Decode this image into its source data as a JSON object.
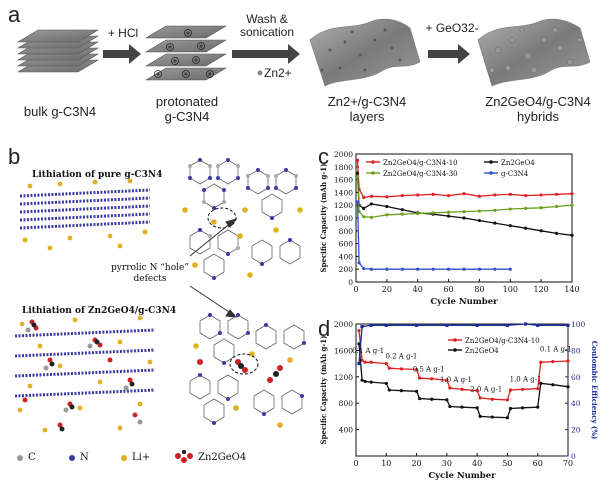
{
  "panel_a": {
    "letter": "a",
    "steps": [
      {
        "label_line1": "bulk g-C3N4",
        "label_line2": ""
      },
      {
        "label_line1": "protonated",
        "label_line2": "g-C3N4"
      },
      {
        "label_line1": "Zn2+/g-C3N4",
        "label_line2": "layers"
      },
      {
        "label_line1": "Zn2GeO4/g-C3N4",
        "label_line2": "hybrids"
      }
    ],
    "arrows": [
      {
        "line1": "+ HCl",
        "line2": ""
      },
      {
        "line1": "Wash &",
        "line2": "sonication"
      },
      {
        "line1": "+ GeO32-",
        "line2": ""
      }
    ],
    "zn_note": "Zn2+"
  },
  "panel_b": {
    "letter": "b",
    "title_top": "Lithiation of pure g-C3N4",
    "title_bottom": "Lithiation of Zn2GeO4/g-C3N4",
    "defect_note_line1": "pyrrolic N “hole”",
    "defect_note_line2": "defects",
    "legend": [
      {
        "label": "C",
        "color": "#9a9a9a"
      },
      {
        "label": "N",
        "color": "#3a3aa0"
      },
      {
        "label": "Li+",
        "color": "#e0b020"
      },
      {
        "label": "Zn2GeO4",
        "color": "#cc2222"
      }
    ]
  },
  "panel_c": {
    "letter": "c",
    "chart_data": {
      "type": "line",
      "xlabel": "Cycle Number",
      "ylabel": "Specific Capacity (mAh g-1)",
      "xlim": [
        0,
        140
      ],
      "ylim": [
        0,
        2000
      ],
      "xticks": [
        0,
        20,
        40,
        60,
        80,
        100,
        120,
        140
      ],
      "yticks": [
        0,
        200,
        400,
        600,
        800,
        1000,
        1200,
        1400,
        1600,
        1800,
        2000
      ],
      "legend_position": "top",
      "series": [
        {
          "name": "Zn2GeO4/g-C3N4-10",
          "color": "#e02020",
          "x": [
            1,
            2,
            5,
            10,
            20,
            30,
            40,
            50,
            60,
            70,
            80,
            90,
            100,
            110,
            120,
            130,
            140
          ],
          "y": [
            1900,
            1450,
            1320,
            1340,
            1330,
            1350,
            1360,
            1370,
            1350,
            1380,
            1340,
            1360,
            1370,
            1350,
            1360,
            1370,
            1380
          ]
        },
        {
          "name": "Zn2GeO4",
          "color": "#111111",
          "x": [
            1,
            2,
            5,
            10,
            20,
            30,
            40,
            50,
            60,
            70,
            80,
            90,
            100,
            110,
            120,
            130,
            140
          ],
          "y": [
            1700,
            1200,
            1150,
            1220,
            1180,
            1130,
            1080,
            1060,
            1030,
            1000,
            960,
            920,
            880,
            840,
            800,
            760,
            730
          ]
        },
        {
          "name": "Zn2GeO4/g-C3N4-30",
          "color": "#6aa020",
          "x": [
            1,
            2,
            5,
            10,
            20,
            30,
            40,
            50,
            60,
            70,
            80,
            90,
            100,
            110,
            120,
            130,
            140
          ],
          "y": [
            1650,
            1100,
            1020,
            1010,
            1050,
            1060,
            1070,
            1080,
            1090,
            1100,
            1110,
            1120,
            1140,
            1150,
            1160,
            1180,
            1200
          ]
        },
        {
          "name": "g-C3N4",
          "color": "#3050d0",
          "x": [
            1,
            2,
            5,
            10,
            20,
            30,
            40,
            50,
            60,
            70,
            80,
            90,
            100
          ],
          "y": [
            1250,
            300,
            210,
            200,
            200,
            200,
            200,
            200,
            200,
            200,
            200,
            200,
            200
          ]
        }
      ]
    }
  },
  "panel_d": {
    "letter": "d",
    "chart_data": {
      "type": "line",
      "xlabel": "Cycle Number",
      "ylabel": "Specific Capacity (mAh g-1)",
      "ylabel_right": "Coulombic Efficiency (%)",
      "xlim": [
        0,
        70
      ],
      "ylim": [
        0,
        2000
      ],
      "ylim_right": [
        0,
        100
      ],
      "xticks": [
        0,
        10,
        20,
        30,
        40,
        50,
        60,
        70
      ],
      "yticks": [
        400,
        800,
        1200,
        1600,
        2000
      ],
      "yticks_right": [
        0,
        20,
        40,
        60,
        80,
        100
      ],
      "legend_position": "top",
      "rate_labels": [
        "0.1 A g-1",
        "0.2 A g-1",
        "0.5 A g-1",
        "1.0 A g-1",
        "2.0 A g-1",
        "1.0 A g-1",
        "0.1 A g-1"
      ],
      "series": [
        {
          "name": "Zn2GeO4/g-C3N4-10",
          "color": "#e02020",
          "x": [
            1,
            2,
            3,
            5,
            10,
            11,
            15,
            20,
            21,
            25,
            30,
            31,
            35,
            40,
            41,
            45,
            50,
            51,
            55,
            60,
            61,
            65,
            70
          ],
          "y": [
            1900,
            1450,
            1420,
            1420,
            1400,
            1330,
            1320,
            1310,
            1180,
            1170,
            1150,
            1030,
            1010,
            990,
            880,
            860,
            850,
            1000,
            1010,
            1020,
            1420,
            1430,
            1440
          ]
        },
        {
          "name": "Zn2GeO4",
          "color": "#111111",
          "x": [
            1,
            2,
            3,
            5,
            10,
            11,
            15,
            20,
            21,
            25,
            30,
            31,
            35,
            40,
            41,
            45,
            50,
            51,
            55,
            60,
            61,
            65,
            70
          ],
          "y": [
            1700,
            1150,
            1130,
            1120,
            1100,
            1000,
            990,
            980,
            870,
            860,
            850,
            750,
            740,
            730,
            600,
            590,
            580,
            720,
            730,
            740,
            1100,
            1080,
            1050
          ]
        },
        {
          "name": "Coulombic Efficiency",
          "color": "#1a2a9a",
          "axis": "right",
          "x": [
            1,
            2,
            5,
            10,
            20,
            30,
            40,
            50,
            56,
            60,
            70
          ],
          "y": [
            70,
            98,
            99,
            99,
            99,
            99,
            99,
            99,
            100,
            99,
            99
          ]
        }
      ]
    }
  }
}
